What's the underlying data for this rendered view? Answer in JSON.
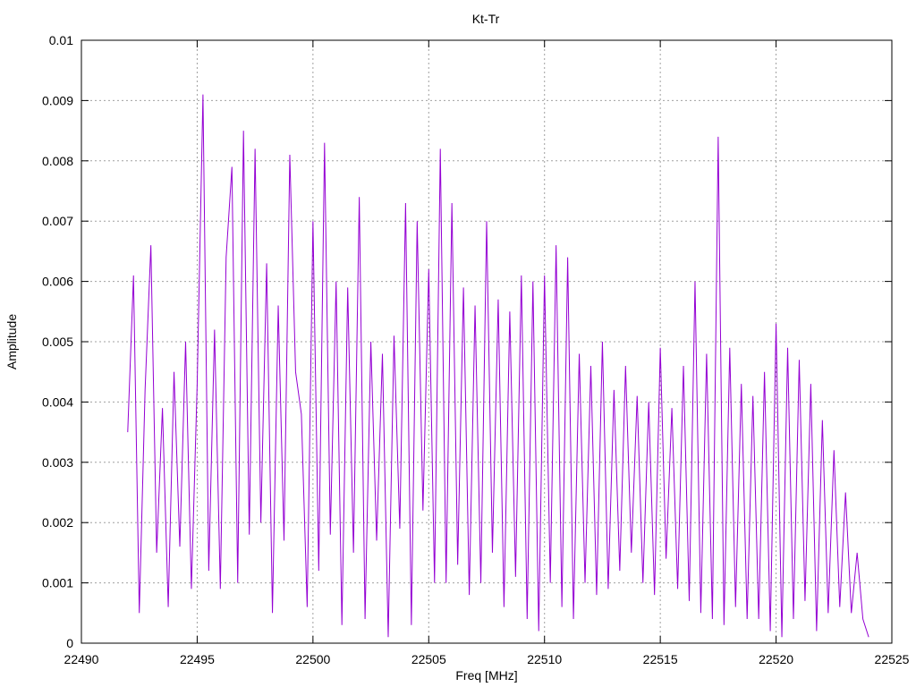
{
  "chart_data": {
    "type": "line",
    "title": "Kt-Tr",
    "xlabel": "Freq [MHz]",
    "ylabel": "Amplitude",
    "xlim": [
      22490,
      22525
    ],
    "ylim": [
      0,
      0.01
    ],
    "xticks": [
      22490,
      22495,
      22500,
      22505,
      22510,
      22515,
      22520,
      22525
    ],
    "xtick_labels": [
      "22490",
      "22495",
      "22500",
      "22505",
      "22510",
      "22515",
      "22520",
      "22525"
    ],
    "yticks": [
      0,
      0.001,
      0.002,
      0.003,
      0.004,
      0.005,
      0.006,
      0.007,
      0.008,
      0.009,
      0.01
    ],
    "ytick_labels": [
      "0",
      "0.001",
      "0.002",
      "0.003",
      "0.004",
      "0.005",
      "0.006",
      "0.007",
      "0.008",
      "0.009",
      "0.01"
    ],
    "grid": true,
    "series": [
      {
        "color": "#9400d3",
        "x": [
          22492.0,
          22492.25,
          22492.5,
          22492.75,
          22493.0,
          22493.25,
          22493.5,
          22493.75,
          22494.0,
          22494.25,
          22494.5,
          22494.75,
          22495.0,
          22495.25,
          22495.5,
          22495.75,
          22496.0,
          22496.25,
          22496.5,
          22496.75,
          22497.0,
          22497.25,
          22497.5,
          22497.75,
          22498.0,
          22498.25,
          22498.5,
          22498.75,
          22499.0,
          22499.25,
          22499.5,
          22499.75,
          22500.0,
          22500.25,
          22500.5,
          22500.75,
          22501.0,
          22501.25,
          22501.5,
          22501.75,
          22502.0,
          22502.25,
          22502.5,
          22502.75,
          22503.0,
          22503.25,
          22503.5,
          22503.75,
          22504.0,
          22504.25,
          22504.5,
          22504.75,
          22505.0,
          22505.25,
          22505.5,
          22505.75,
          22506.0,
          22506.25,
          22506.5,
          22506.75,
          22507.0,
          22507.25,
          22507.5,
          22507.75,
          22508.0,
          22508.25,
          22508.5,
          22508.75,
          22509.0,
          22509.25,
          22509.5,
          22509.75,
          22510.0,
          22510.25,
          22510.5,
          22510.75,
          22511.0,
          22511.25,
          22511.5,
          22511.75,
          22512.0,
          22512.25,
          22512.5,
          22512.75,
          22513.0,
          22513.25,
          22513.5,
          22513.75,
          22514.0,
          22514.25,
          22514.5,
          22514.75,
          22515.0,
          22515.25,
          22515.5,
          22515.75,
          22516.0,
          22516.25,
          22516.5,
          22516.75,
          22517.0,
          22517.25,
          22517.5,
          22517.75,
          22518.0,
          22518.25,
          22518.5,
          22518.75,
          22519.0,
          22519.25,
          22519.5,
          22519.75,
          22520.0,
          22520.25,
          22520.5,
          22520.75,
          22521.0,
          22521.25,
          22521.5,
          22521.75,
          22522.0,
          22522.25,
          22522.5,
          22522.75,
          22523.0,
          22523.25,
          22523.5,
          22523.75,
          22524.0
        ],
        "y": [
          0.0035,
          0.0061,
          0.0005,
          0.0042,
          0.0066,
          0.0015,
          0.0039,
          0.0006,
          0.0045,
          0.0016,
          0.005,
          0.0009,
          0.0043,
          0.0091,
          0.0012,
          0.0052,
          0.0009,
          0.0064,
          0.0079,
          0.001,
          0.0085,
          0.0018,
          0.0082,
          0.002,
          0.0063,
          0.0005,
          0.0056,
          0.0017,
          0.0081,
          0.0045,
          0.0038,
          0.0006,
          0.007,
          0.0012,
          0.0083,
          0.0018,
          0.006,
          0.0003,
          0.0059,
          0.0015,
          0.0074,
          0.0004,
          0.005,
          0.0017,
          0.0048,
          0.0001,
          0.0051,
          0.0019,
          0.0073,
          0.0003,
          0.007,
          0.0022,
          0.0062,
          0.001,
          0.0082,
          0.001,
          0.0073,
          0.0013,
          0.0059,
          0.0008,
          0.0056,
          0.001,
          0.007,
          0.0015,
          0.0057,
          0.0006,
          0.0055,
          0.0011,
          0.0061,
          0.0004,
          0.006,
          0.0002,
          0.0061,
          0.001,
          0.0066,
          0.0006,
          0.0064,
          0.0004,
          0.0048,
          0.001,
          0.0046,
          0.0008,
          0.005,
          0.0009,
          0.0042,
          0.0012,
          0.0046,
          0.0015,
          0.0041,
          0.001,
          0.004,
          0.0008,
          0.0049,
          0.0014,
          0.0039,
          0.0009,
          0.0046,
          0.0007,
          0.006,
          0.0005,
          0.0048,
          0.0004,
          0.0084,
          0.0003,
          0.0049,
          0.0006,
          0.0043,
          0.0004,
          0.0041,
          0.0004,
          0.0045,
          0.0002,
          0.0053,
          0.0001,
          0.0049,
          0.0004,
          0.0047,
          0.0007,
          0.0043,
          0.0002,
          0.0037,
          0.0005,
          0.0032,
          0.0006,
          0.0025,
          0.0005,
          0.0015,
          0.0004,
          0.0001
        ]
      }
    ]
  }
}
